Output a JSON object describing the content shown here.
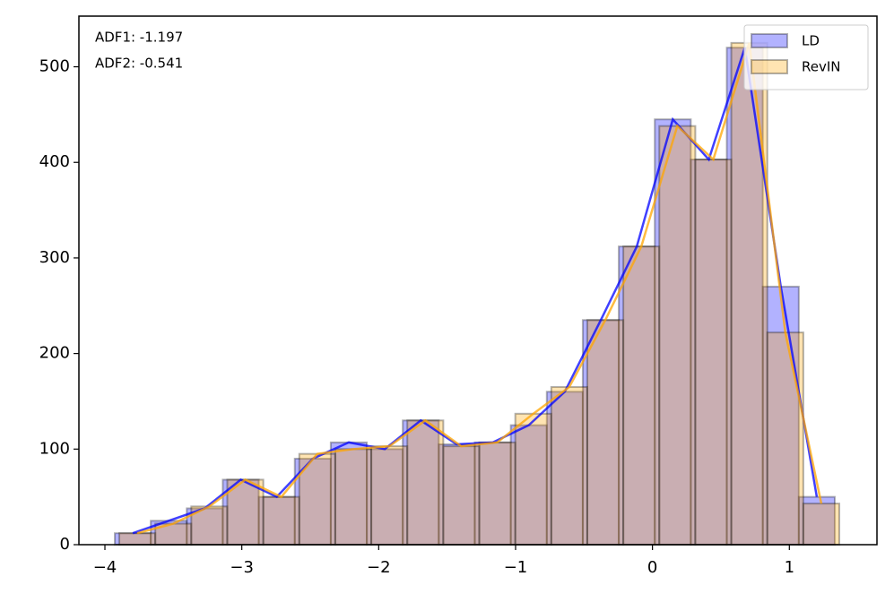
{
  "chart_data": {
    "type": "histogram",
    "annotations": [
      {
        "text": "ADF1: -1.197",
        "color": "#0000ff"
      },
      {
        "text": "ADF2: -0.541",
        "color": "#ffa500"
      }
    ],
    "series": [
      {
        "name": "LD",
        "color": "#0000ff",
        "bins": [
          -3.928,
          -3.665,
          -3.402,
          -3.139,
          -2.876,
          -2.613,
          -2.35,
          -2.087,
          -1.824,
          -1.561,
          -1.298,
          -1.035,
          -0.772,
          -0.509,
          -0.246,
          0.017,
          0.28,
          0.543,
          0.806,
          1.069,
          1.332
        ],
        "values": [
          12,
          25,
          38,
          68,
          50,
          90,
          107,
          100,
          130,
          105,
          107,
          125,
          160,
          235,
          312,
          445,
          403,
          520,
          270,
          50
        ]
      },
      {
        "name": "RevIN",
        "color": "#ffa500",
        "bins": [
          -3.895,
          -3.632,
          -3.369,
          -3.106,
          -2.843,
          -2.58,
          -2.317,
          -2.054,
          -1.791,
          -1.528,
          -1.265,
          -1.002,
          -0.739,
          -0.476,
          -0.213,
          0.05,
          0.313,
          0.576,
          0.839,
          1.102,
          1.365
        ],
        "values": [
          12,
          22,
          40,
          68,
          50,
          95,
          100,
          103,
          130,
          103,
          107,
          137,
          165,
          235,
          312,
          438,
          403,
          525,
          222,
          43
        ]
      }
    ],
    "xlim": [
      -4.19,
      1.64
    ],
    "ylim": [
      0,
      553
    ],
    "xticks": [
      {
        "value": -4,
        "label": "−4"
      },
      {
        "value": -3,
        "label": "−3"
      },
      {
        "value": -2,
        "label": "−2"
      },
      {
        "value": -1,
        "label": "−1"
      },
      0,
      1
    ],
    "yticks": [
      0,
      100,
      200,
      300,
      400,
      500
    ],
    "legend": "upper right"
  }
}
